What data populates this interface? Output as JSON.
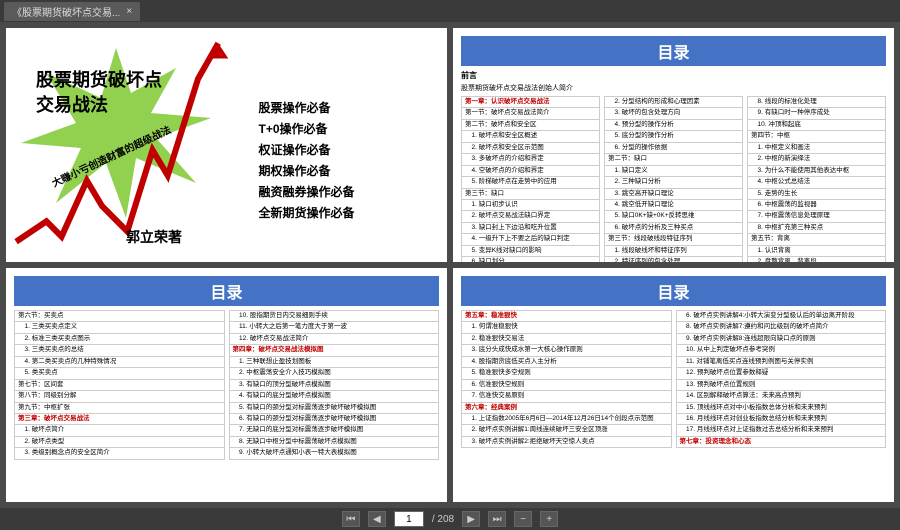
{
  "tab": {
    "title": "《股票期货破坏点交易...",
    "close": "×"
  },
  "cover": {
    "title_line1": "股票期货破坏点",
    "title_line2": "交易战法",
    "diagonal": "大赚小亏创造财富的超级战法",
    "author": "郭立荣著",
    "bullets": [
      "股票操作必备",
      "T+0操作必备",
      "权证操作必备",
      "期权操作必备",
      "融资融券操作必备",
      "全新期货操作必备"
    ],
    "star_fill": "#92d050",
    "line_color": "#c00000"
  },
  "toc2": {
    "title": "目录",
    "preface": "前言",
    "sub": "股票期货破坏点交易战法创始人简介",
    "col1": [
      {
        "t": "第一章：认识破坏点交易战法",
        "c": "chapter-red"
      },
      {
        "t": "第一节：破坏点交易战法简介"
      },
      {
        "t": "第二节：破坏点和安全区"
      },
      {
        "t": "　1. 破坏点和安全区概述"
      },
      {
        "t": "　2. 破坏点和安全区示范图"
      },
      {
        "t": "　3. 多破坏点的介绍和界定"
      },
      {
        "t": "　4. 空破坏点的介绍和界定"
      },
      {
        "t": "　5. 阶梯破坏点在走势中的应用"
      },
      {
        "t": "第三节：缺口"
      },
      {
        "t": "　1. 缺口初步认识"
      },
      {
        "t": "　2. 破坏点交易战法缺口界定"
      },
      {
        "t": "　3. 缺口封上下边沿和吃升位置"
      },
      {
        "t": "　4. 一级升下上不要之后的缺口判定"
      },
      {
        "t": "　5. 变异K线对缺口的影响"
      },
      {
        "t": "　6. 缺口划分"
      },
      {
        "t": "　7. 缺口笔法"
      },
      {
        "t": "　8. 笔的四种形态"
      },
      {
        "t": "　9. 笔定基础线"
      },
      {
        "t": "第二章：理论核心内容",
        "c": "chapter-blue"
      },
      {
        "t": "第一节：分型"
      },
      {
        "t": "　1. 顶底分型"
      },
      {
        "t": "　2. 笔或笔与线段破坏的区别"
      }
    ],
    "col2": [
      {
        "t": "　2. 分型结构的形成和心理因素"
      },
      {
        "t": "　3. 破坏的包含处理方向"
      },
      {
        "t": "　4. 预分型的操作分析"
      },
      {
        "t": "　5. 底分型的操作分析"
      },
      {
        "t": "　6. 分型的操作依据"
      },
      {
        "t": "第二节：缺口"
      },
      {
        "t": "　1. 缺口定义"
      },
      {
        "t": "　2. 三种缺口分析"
      },
      {
        "t": "　3. 跳空高开缺口理论"
      },
      {
        "t": "　4. 跳空低开缺口理论"
      },
      {
        "t": "　5. 缺口0K+缺+0K+反转思维"
      },
      {
        "t": "　6. 破坏点的分析及三种买点"
      },
      {
        "t": "第三节：线段破线段特征序列"
      },
      {
        "t": "　1. 线段破线坏和特征序列"
      },
      {
        "t": "　2. 特征序列的包含处理"
      },
      {
        "t": "　3. 线段划分的具体口诀分析"
      },
      {
        "t": "　4. 线段划分的概念和规则"
      },
      {
        "t": "　5. 线段划分的基本原则"
      },
      {
        "t": "　6. 线段划分的纠误"
      },
      {
        "t": "　7. 线段划分的实例"
      }
    ],
    "col3": [
      {
        "t": "　8. 线段的标准化处理"
      },
      {
        "t": "　9. 有缺口时一种停序成处"
      },
      {
        "t": "　10. 冲顶和起底"
      },
      {
        "t": "第四节：中枢"
      },
      {
        "t": "　1. 中枢定义和画法"
      },
      {
        "t": "　2. 中枢的新演绎法"
      },
      {
        "t": "　3. 为什么不能使用其他表达中枢"
      },
      {
        "t": "　4. 中枢公式总结法"
      },
      {
        "t": "　5. 走势的生长"
      },
      {
        "t": "　6. 中枢震荡的监视器"
      },
      {
        "t": "　7. 中枢震荡信息处理原理"
      },
      {
        "t": "　8. 中枢扩充第三种买点"
      },
      {
        "t": "第五节：背离"
      },
      {
        "t": "　1. 认识背离"
      },
      {
        "t": "　2. 盘整背离、背离段"
      },
      {
        "t": "　3. 背离线"
      },
      {
        "t": "　4. 背离段的辅助判别"
      },
      {
        "t": "　5. 中MACD简易低买背离能量法"
      }
    ]
  },
  "toc3": {
    "title": "目录",
    "col1": [
      {
        "t": "第六节：买卖点"
      },
      {
        "t": "　1. 三类买卖点定义"
      },
      {
        "t": "　2. 标准三类买卖点图示"
      },
      {
        "t": "　3. 三类买卖点的总结"
      },
      {
        "t": "　4. 第二类买卖点的几种特殊情况"
      },
      {
        "t": "　5. 类买卖点"
      },
      {
        "t": "第七节：区间套"
      },
      {
        "t": "第八节：同级别分解"
      },
      {
        "t": "第九节：中枢扩张"
      },
      {
        "t": "第三章：破坏点交易战法",
        "c": "chapter-red"
      },
      {
        "t": "　1. 破坏点简介"
      },
      {
        "t": "　2. 破坏点类型"
      },
      {
        "t": "　3. 类级别概念点的安全区简介"
      }
    ],
    "col2": [
      {
        "t": "　10. 股指期货日内交易细则手续"
      },
      {
        "t": "　11. 小转大之后第一笔力度大于第一波"
      },
      {
        "t": "　12. 破坏点交易战法简介"
      },
      {
        "t": "第四章：破坏点交易战法模拟图",
        "c": "chapter-red"
      },
      {
        "t": "　1. 三种联想止盈技划图板"
      },
      {
        "t": "　2. 中枢震荡安全介入技巧模拟图"
      },
      {
        "t": "　3. 有缺口的顶分型破坏点模拟图"
      },
      {
        "t": "　4. 有缺口的底分型破坏点模拟图"
      },
      {
        "t": "　5. 有缺口的颈分型对标震荡逐步破坏破坏模拟图"
      },
      {
        "t": "　6. 有缺口的颈分型对标震荡逐步破坏破坏模拟图"
      },
      {
        "t": "　7. 无缺口的底分型对标震荡逐步破坏模拟图"
      },
      {
        "t": "　8. 无缺口中枢分型中标震荡破坏点模拟图"
      },
      {
        "t": "　9. 小转大破坏点通知小表一特大表模拟图"
      }
    ]
  },
  "toc4": {
    "title": "目录",
    "col1": [
      {
        "t": "第五章：稳准狠快",
        "c": "chapter-red"
      },
      {
        "t": "　1. 何谓准稳狠快"
      },
      {
        "t": "　2. 稳准狠快交易法"
      },
      {
        "t": "　3. 底分头成快成水第一大核心操作原则"
      },
      {
        "t": "　4. 股指期货底低买点入主分析"
      },
      {
        "t": "　5. 稳准狠快多空规则"
      },
      {
        "t": "　6. 信准狠快空规则"
      },
      {
        "t": "　7. 信准快交易原则"
      },
      {
        "t": "第六章：经典案例",
        "c": "chapter-red"
      },
      {
        "t": "　1. 上证指数2005年6月6日—2014年12月26日14个创段点示范图"
      },
      {
        "t": "　2. 破坏点实例讲解1:周线连续破坏三安全区顶涨"
      },
      {
        "t": "　3. 破坏点实例讲解2:拒绝破坏天空惊人卖点"
      }
    ],
    "col2": [
      {
        "t": "　6. 破坏点实例讲解4:小转大演变分型极认后的单边离开阶段"
      },
      {
        "t": "　8. 破坏点实例讲解7:遵约和问比级别的破坏点简介"
      },
      {
        "t": "　9. 破坏点实例讲解8:连线超限向缺口点的原则"
      },
      {
        "t": "　10. 从中上判定破坏点参考突例"
      },
      {
        "t": "　11. 对铺笔离低买点连线预判例图与关停实例"
      },
      {
        "t": "　12. 预判破坏点位置参数释疑"
      },
      {
        "t": "　13. 预判破坏点位置规则"
      },
      {
        "t": "　14. 区别解释破坏点算法：未来高点预判"
      },
      {
        "t": "　15. 顶线线环点对中小板指数总体分析和未来预判"
      },
      {
        "t": "　16. 月线线环点对创业板指数总结分析和未来预判"
      },
      {
        "t": "　17. 月线线环点对上证指数过去总结分析和未来预判"
      },
      {
        "t": "第七章：投资理念和心态",
        "c": "chapter-red"
      }
    ]
  },
  "footer": {
    "first": "⏮",
    "prev": "◀",
    "page": "1",
    "total": "/ 208",
    "next": "▶",
    "last": "⏭",
    "extra1": "−",
    "extra2": "+"
  }
}
